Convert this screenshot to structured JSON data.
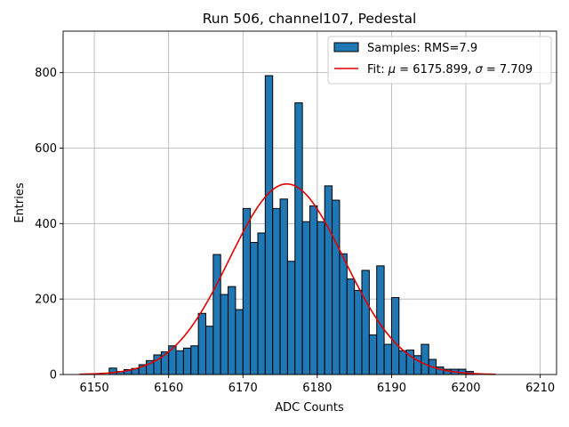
{
  "chart_data": {
    "type": "bar",
    "title": "Run 506, channel107, Pedestal",
    "xlabel": "ADC Counts",
    "ylabel": "Entries",
    "xlim": [
      6145.8,
      6212.2
    ],
    "ylim": [
      0,
      910
    ],
    "grid": true,
    "legend_position": "top-right",
    "x_ticks": [
      6150,
      6160,
      6170,
      6180,
      6190,
      6200,
      6210
    ],
    "y_ticks": [
      0,
      200,
      400,
      600,
      800
    ],
    "histogram": {
      "name": "Samples: RMS=7.9",
      "bin_width": 1,
      "bin_starts": [
        6152,
        6153,
        6154,
        6155,
        6156,
        6157,
        6158,
        6159,
        6160,
        6161,
        6162,
        6163,
        6164,
        6165,
        6166,
        6167,
        6168,
        6169,
        6170,
        6171,
        6172,
        6173,
        6174,
        6175,
        6176,
        6177,
        6178,
        6179,
        6180,
        6181,
        6182,
        6183,
        6184,
        6185,
        6186,
        6187,
        6188,
        6189,
        6190,
        6191,
        6192,
        6193,
        6194,
        6195,
        6196,
        6197,
        6198,
        6199,
        6200
      ],
      "values": [
        17,
        8,
        13,
        16,
        26,
        37,
        52,
        60,
        76,
        63,
        70,
        76,
        162,
        128,
        318,
        212,
        233,
        172,
        440,
        350,
        375,
        792,
        440,
        465,
        300,
        720,
        405,
        447,
        405,
        500,
        462,
        320,
        253,
        223,
        276,
        105,
        288,
        80,
        204,
        63,
        65,
        50,
        80,
        40,
        20,
        14,
        14,
        14,
        8
      ],
      "color": "#1f77b4",
      "edge_color": "#000000"
    },
    "fit": {
      "name": "Fit: μ = 6175.899, σ = 7.709",
      "label_parts": {
        "prefix": "Fit: ",
        "mu_symbol": "μ",
        "mu_text": " = 6175.899, ",
        "sigma_symbol": "σ",
        "sigma_text": " = 7.709"
      },
      "mu": 6175.899,
      "sigma": 7.709,
      "amplitude": 505,
      "x_range": [
        6148,
        6204
      ],
      "color": "#e00000"
    }
  }
}
